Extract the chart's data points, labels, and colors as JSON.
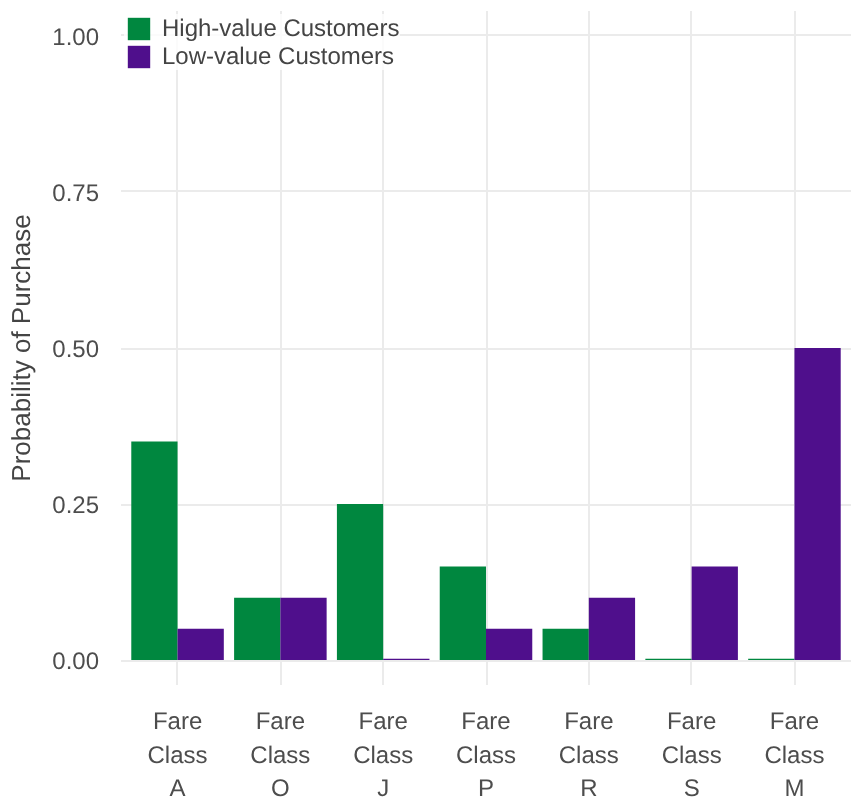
{
  "chart_data": {
    "type": "bar",
    "ylabel": "Probability of Purchase",
    "categories": [
      "Fare Class A",
      "Fare Class O",
      "Fare Class J",
      "Fare Class P",
      "Fare Class R",
      "Fare Class S",
      "Fare Class M"
    ],
    "series": [
      {
        "name": "High-value Customers",
        "color": "#00873f",
        "values": [
          0.35,
          0.1,
          0.25,
          0.15,
          0.05,
          0.002,
          0.002
        ]
      },
      {
        "name": "Low-value Customers",
        "color": "#4f0f8c",
        "values": [
          0.05,
          0.1,
          0.002,
          0.05,
          0.1,
          0.15,
          0.5
        ]
      }
    ],
    "ylim": [
      -0.04,
      1.04
    ],
    "yticks": [
      {
        "value": 0,
        "label": "0.00"
      },
      {
        "value": 0.25,
        "label": "0.25"
      },
      {
        "value": 0.5,
        "label": "0.50"
      },
      {
        "value": 0.75,
        "label": "0.75"
      },
      {
        "value": 1,
        "label": "1.00"
      }
    ],
    "grid": true,
    "legend": "top left"
  }
}
